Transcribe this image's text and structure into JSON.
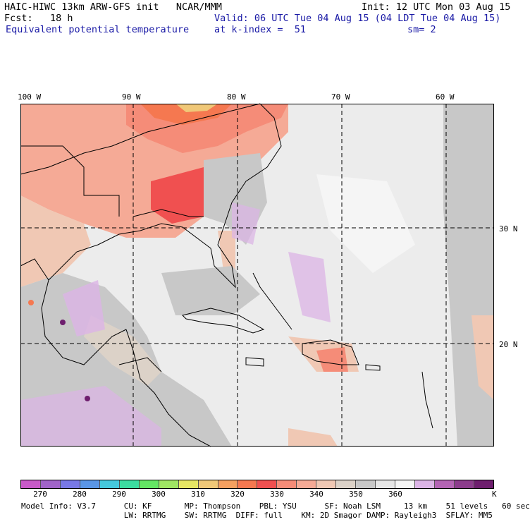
{
  "header": {
    "left1": "HAIC-HIWC 13km ARW-GFS init   NCAR/MMM",
    "left2": "Fcst:   18 h",
    "left3": "Equivalent potential temperature",
    "right1": "Init: 12 UTC Mon 03 Aug 15",
    "right2": "Valid: 06 UTC Tue 04 Aug 15 (04 LDT Tue 04 Aug 15)",
    "right3a": "at k-index =  51",
    "right3b": "sm= 2"
  },
  "map": {
    "lon_labels": [
      "100 W",
      "90 W",
      "80 W",
      "70 W",
      "60 W"
    ],
    "lat_labels": [
      "30 N",
      "20 N"
    ],
    "background_color": "#ececec"
  },
  "colorbar": {
    "colors": [
      "#c85ac8",
      "#a064c8",
      "#7878e6",
      "#5a96e6",
      "#46c8dc",
      "#3cdca0",
      "#64e664",
      "#a0e664",
      "#e6e664",
      "#f0c878",
      "#f5a060",
      "#f57850",
      "#f05050",
      "#f58c78",
      "#f5aa96",
      "#f0c8b4",
      "#dcd2c8",
      "#c8c8c8",
      "#e6e6e6",
      "#f5f5f5",
      "#dcb4e6",
      "#b464b4",
      "#8c3c8c",
      "#6e1e6e"
    ],
    "ticks": [
      "270",
      "280",
      "290",
      "300",
      "310",
      "320",
      "330",
      "340",
      "350",
      "360"
    ],
    "unit": "K"
  },
  "footer": {
    "line1": "Model Info: V3.7      CU: KF       MP: Thompson    PBL: YSU      SF: Noah LSM     13 km    51 levels   60 sec",
    "line2": "                      LW: RRTMG    SW: RRTMG  DIFF: full    KM: 2D Smagor DAMP: Rayleigh3  SFLAY: MM5"
  }
}
